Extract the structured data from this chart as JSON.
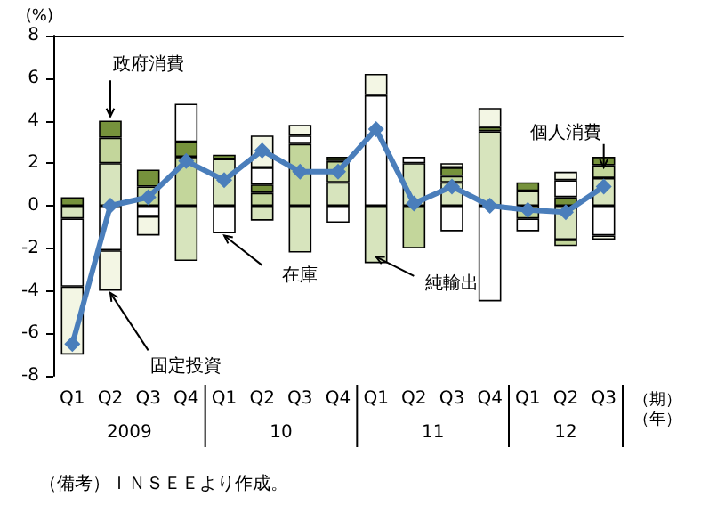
{
  "chart_data": {
    "type": "bar",
    "stacked": true,
    "ylabel": "(%)",
    "xlabel": "（期）",
    "x2label": "（年）",
    "categories": [
      "Q1",
      "Q2",
      "Q3",
      "Q4",
      "Q1",
      "Q2",
      "Q3",
      "Q4",
      "Q1",
      "Q2",
      "Q3",
      "Q4",
      "Q1",
      "Q2",
      "Q3"
    ],
    "ylim": [
      -8,
      8
    ],
    "yticks": [
      -8,
      -6,
      -4,
      -2,
      0,
      2,
      4,
      6,
      8
    ],
    "grid": false,
    "legend": false,
    "series": [
      {
        "name": "純輸出",
        "color": "#d7e4bd",
        "values": [
          -0.6,
          2.0,
          null,
          -2.6,
          2.2,
          -0.7,
          -2.2,
          1.1,
          -2.7,
          2.0,
          1.1,
          3.5,
          0.7,
          -1.6,
          1.3
        ]
      },
      {
        "name": "個人消費",
        "color": "#c3d69b",
        "values": [
          null,
          1.2,
          0.9,
          2.3,
          null,
          0.6,
          2.9,
          1.0,
          null,
          -2.0,
          0.3,
          null,
          -0.6,
          -0.3,
          0.6
        ]
      },
      {
        "name": "政府消費",
        "color": "#76923c",
        "values": [
          0.4,
          0.8,
          0.8,
          0.7,
          0.2,
          0.4,
          null,
          0.2,
          null,
          null,
          0.4,
          0.2,
          0.4,
          0.4,
          0.4
        ]
      },
      {
        "name": "在庫",
        "color": "#ffffff",
        "values": [
          -3.2,
          -2.1,
          -0.5,
          1.8,
          -1.3,
          0.8,
          0.4,
          -0.8,
          5.2,
          0.3,
          -1.2,
          -4.5,
          -0.6,
          0.8,
          -1.4
        ]
      },
      {
        "name": "固定投資",
        "color": "#f3f6e4",
        "values": [
          -3.2,
          -1.9,
          -0.9,
          null,
          null,
          1.5,
          0.5,
          null,
          1.0,
          null,
          0.2,
          0.9,
          null,
          0.4,
          -0.2
        ]
      },
      {
        "type": "line",
        "color": "#4a7ebb",
        "marker": "diamond",
        "line_style": "solid",
        "values": [
          -6.5,
          0,
          0.4,
          2.1,
          1.2,
          2.6,
          1.6,
          1.6,
          3.6,
          0.1,
          0.9,
          0,
          -0.2,
          -0.3,
          0.9
        ]
      }
    ],
    "annotations": [
      "2009",
      "10",
      "11",
      "12",
      "（備考）ＩＮＳＥＥより作成。"
    ]
  }
}
